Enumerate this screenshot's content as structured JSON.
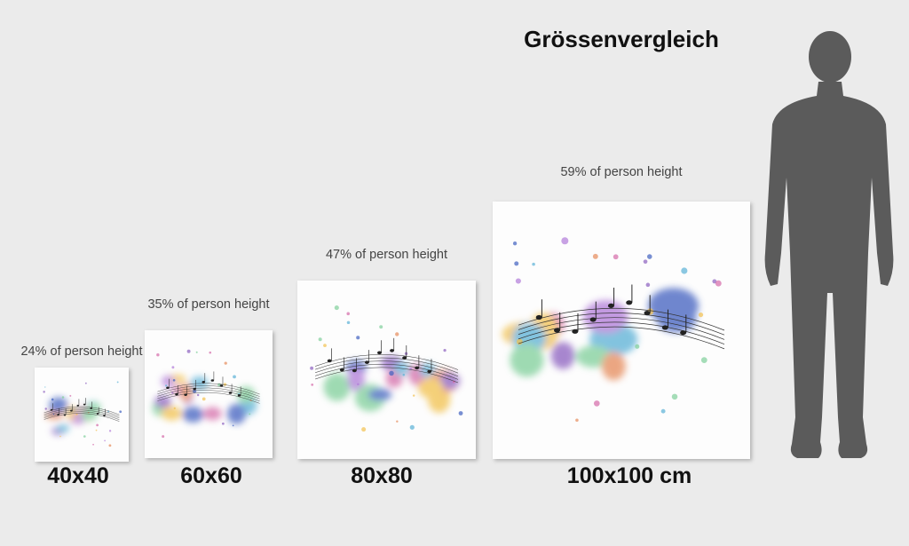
{
  "title": "Grössenvergleich",
  "items": [
    {
      "caption": "24% of person height",
      "size": "40x40"
    },
    {
      "caption": "35% of person height",
      "size": "60x60"
    },
    {
      "caption": "47% of person height",
      "size": "80x80"
    },
    {
      "caption": "59% of person height",
      "size": "100x100 cm"
    }
  ]
}
